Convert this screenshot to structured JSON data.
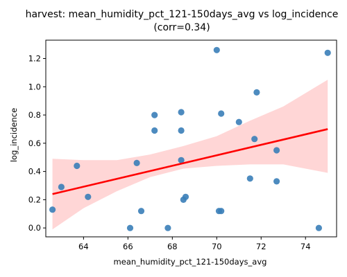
{
  "chart_data": {
    "type": "scatter",
    "title_line1": "harvest: mean_humidity_pct_121-150days_avg vs log_incidence",
    "title_line2": "(corr=0.34)",
    "xlabel": "mean_humidity_pct_121-150days_avg",
    "ylabel": "log_incidence",
    "xlim": [
      62.3,
      75.4
    ],
    "ylim": [
      -0.063,
      1.33
    ],
    "xticks": [
      64,
      66,
      68,
      70,
      72,
      74
    ],
    "yticks": [
      0.0,
      0.2,
      0.4,
      0.6,
      0.8,
      1.0,
      1.2
    ],
    "grid": false,
    "points": [
      {
        "x": 62.6,
        "y": 0.13
      },
      {
        "x": 63.0,
        "y": 0.29
      },
      {
        "x": 63.7,
        "y": 0.44
      },
      {
        "x": 64.2,
        "y": 0.22
      },
      {
        "x": 66.1,
        "y": 0.0
      },
      {
        "x": 66.4,
        "y": 0.46
      },
      {
        "x": 66.6,
        "y": 0.12
      },
      {
        "x": 67.2,
        "y": 0.8
      },
      {
        "x": 67.2,
        "y": 0.69
      },
      {
        "x": 67.8,
        "y": 0.0
      },
      {
        "x": 68.4,
        "y": 0.82
      },
      {
        "x": 68.4,
        "y": 0.69
      },
      {
        "x": 68.4,
        "y": 0.48
      },
      {
        "x": 68.5,
        "y": 0.2
      },
      {
        "x": 68.6,
        "y": 0.22
      },
      {
        "x": 70.0,
        "y": 1.26
      },
      {
        "x": 70.1,
        "y": 0.12
      },
      {
        "x": 70.2,
        "y": 0.81
      },
      {
        "x": 70.2,
        "y": 0.12
      },
      {
        "x": 71.0,
        "y": 0.75
      },
      {
        "x": 71.5,
        "y": 0.35
      },
      {
        "x": 71.7,
        "y": 0.63
      },
      {
        "x": 71.8,
        "y": 0.96
      },
      {
        "x": 72.7,
        "y": 0.55
      },
      {
        "x": 72.7,
        "y": 0.33
      },
      {
        "x": 74.6,
        "y": 0.0
      },
      {
        "x": 75.0,
        "y": 1.24
      }
    ],
    "regression_line": {
      "x": [
        62.6,
        75.0
      ],
      "y": [
        0.24,
        0.7
      ]
    },
    "confidence_band": {
      "x": [
        62.6,
        64.0,
        65.5,
        67.0,
        68.5,
        70.0,
        71.5,
        73.0,
        75.0
      ],
      "lower": [
        -0.01,
        0.14,
        0.26,
        0.36,
        0.42,
        0.44,
        0.45,
        0.45,
        0.39
      ],
      "upper": [
        0.49,
        0.48,
        0.48,
        0.52,
        0.58,
        0.65,
        0.76,
        0.86,
        1.05
      ]
    },
    "colors": {
      "points": "#3a7eb8",
      "line": "#ff0000",
      "band": "#ffd6d6"
    }
  }
}
